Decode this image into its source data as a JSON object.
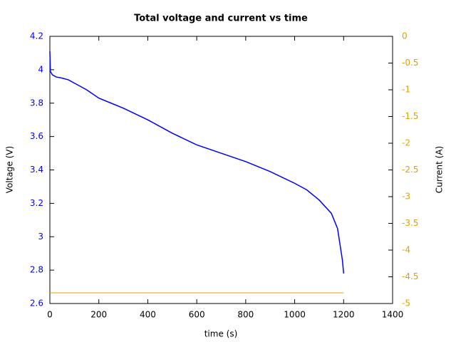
{
  "chart_data": {
    "type": "line",
    "title": "Total voltage and current vs time",
    "xlabel": "time (s)",
    "ylabel": "Voltage (V)",
    "y2label": "Current (A)",
    "xlim": [
      0,
      1400
    ],
    "xticks": [
      0,
      200,
      400,
      600,
      800,
      1000,
      1200,
      1400
    ],
    "ylim": [
      2.6,
      4.2
    ],
    "yticks": [
      2.6,
      2.8,
      3,
      3.2,
      3.4,
      3.6,
      3.8,
      4,
      4.2
    ],
    "ycolor": "#0000ff",
    "y2lim": [
      -5,
      0
    ],
    "y2ticks": [
      -5,
      -4.5,
      -4,
      -3.5,
      -3,
      -2.5,
      -2,
      -1.5,
      -1,
      -0.5,
      0
    ],
    "y2color": "#e0a000",
    "series": [
      {
        "name": "Voltage",
        "color": "#0000ff",
        "axis": "y",
        "x": [
          0,
          2,
          10,
          25,
          50,
          75,
          100,
          150,
          200,
          250,
          300,
          400,
          500,
          600,
          700,
          800,
          900,
          1000,
          1050,
          1100,
          1150,
          1175,
          1195,
          1200
        ],
        "values": [
          4.11,
          3.99,
          3.97,
          3.957,
          3.95,
          3.94,
          3.92,
          3.88,
          3.83,
          3.8,
          3.77,
          3.7,
          3.62,
          3.55,
          3.5,
          3.45,
          3.39,
          3.32,
          3.28,
          3.22,
          3.14,
          3.05,
          2.86,
          2.78
        ]
      },
      {
        "name": "Current",
        "color": "#e0a000",
        "axis": "y2",
        "x": [
          0,
          1200
        ],
        "values": [
          -4.8,
          -4.8
        ]
      }
    ]
  }
}
